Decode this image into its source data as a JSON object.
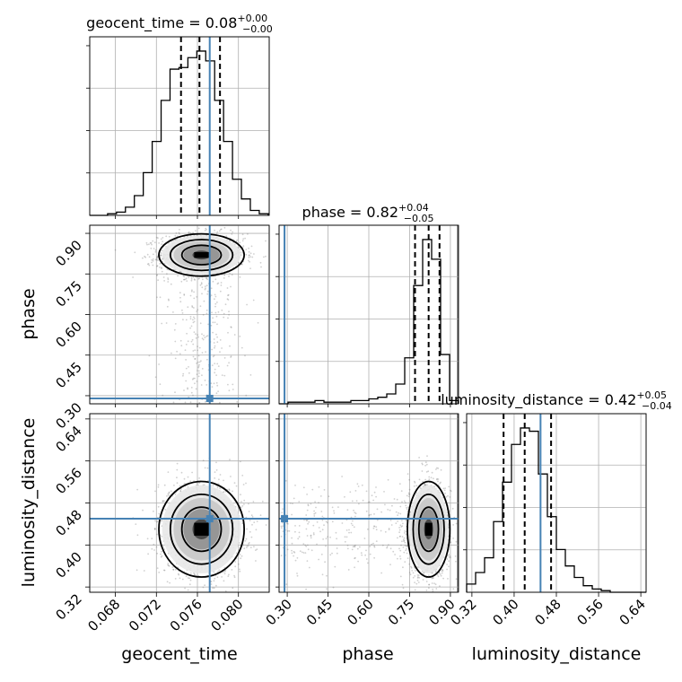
{
  "chart_data": {
    "type": "corner",
    "parameters": [
      {
        "name": "geocent_time",
        "label": "geocent_time",
        "range": [
          0.0655,
          0.083
        ],
        "ticks": [
          0.068,
          0.072,
          0.076,
          0.08
        ],
        "tick_labels": [
          "0.068",
          "0.072",
          "0.076",
          "0.080"
        ],
        "title_value": "0.08",
        "title_plus": "+0.00",
        "title_minus": "−0.00",
        "quantiles": [
          0.0744,
          0.0762,
          0.0782
        ],
        "truth": 0.0772,
        "hist_edges": [
          0.0655,
          0.06637,
          0.06724,
          0.06811,
          0.06898,
          0.06985,
          0.07072,
          0.07159,
          0.07246,
          0.07333,
          0.0742,
          0.07507,
          0.07594,
          0.07681,
          0.07768,
          0.07855,
          0.07942,
          0.08029,
          0.08116,
          0.08203,
          0.0829
        ],
        "hist_counts": [
          0,
          0,
          1,
          2,
          5,
          12,
          26,
          45,
          70,
          89,
          90,
          96,
          100,
          94,
          70,
          45,
          22,
          10,
          3,
          1
        ]
      },
      {
        "name": "phase",
        "label": "phase",
        "range": [
          0.27,
          0.93
        ],
        "ticks": [
          0.3,
          0.45,
          0.6,
          0.75,
          0.9
        ],
        "tick_labels": [
          "0.30",
          "0.45",
          "0.60",
          "0.75",
          "0.90"
        ],
        "title_value": "0.82",
        "title_plus": "+0.04",
        "title_minus": "−0.05",
        "quantiles": [
          0.77,
          0.82,
          0.86
        ],
        "truth": 0.29,
        "hist_edges": [
          0.27,
          0.303,
          0.336,
          0.369,
          0.402,
          0.435,
          0.468,
          0.501,
          0.534,
          0.567,
          0.6,
          0.633,
          0.666,
          0.699,
          0.732,
          0.765,
          0.798,
          0.831,
          0.864,
          0.897,
          0.93
        ],
        "hist_counts": [
          0,
          1,
          1,
          1,
          2,
          1,
          1,
          1,
          2,
          2,
          3,
          4,
          6,
          12,
          28,
          72,
          100,
          88,
          30,
          2
        ]
      },
      {
        "name": "luminosity_distance",
        "label": "luminosity_distance",
        "range": [
          0.31,
          0.65
        ],
        "ticks": [
          0.32,
          0.4,
          0.48,
          0.56,
          0.64
        ],
        "tick_labels": [
          "0.32",
          "0.40",
          "0.48",
          "0.56",
          "0.64"
        ],
        "title_value": "0.42",
        "title_plus": "+0.05",
        "title_minus": "−0.04",
        "quantiles": [
          0.38,
          0.42,
          0.47
        ],
        "truth": 0.45,
        "hist_edges": [
          0.31,
          0.327,
          0.344,
          0.361,
          0.378,
          0.395,
          0.412,
          0.429,
          0.446,
          0.463,
          0.48,
          0.497,
          0.514,
          0.531,
          0.548,
          0.565,
          0.582,
          0.599,
          0.616,
          0.633,
          0.65
        ],
        "hist_counts": [
          5,
          12,
          21,
          43,
          67,
          90,
          100,
          98,
          72,
          46,
          26,
          16,
          9,
          4,
          2,
          1,
          0,
          0,
          0,
          0
        ]
      }
    ],
    "truth_color": "#4682b4",
    "grid": true,
    "density_color": "#000000"
  }
}
